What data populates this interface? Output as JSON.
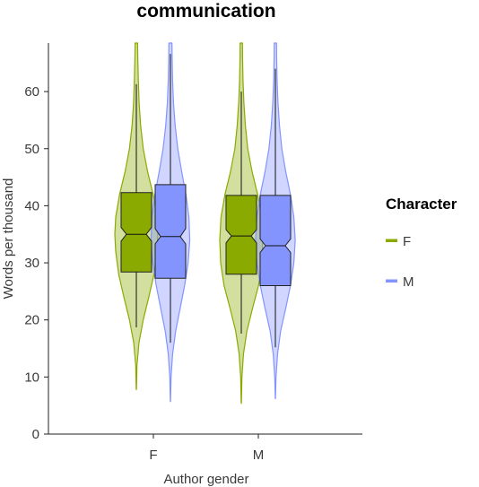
{
  "chart_data": {
    "type": "violin+boxplot",
    "title": "communication",
    "xlabel": "Author gender",
    "ylabel": "Words per thousand",
    "categories": [
      "F",
      "M"
    ],
    "ylim": [
      0,
      68.5
    ],
    "yticks": [
      0,
      10,
      20,
      30,
      40,
      50,
      60
    ],
    "grid": false,
    "legend": {
      "title": "Character",
      "position": "right",
      "entries": [
        {
          "label": "F",
          "color": "#8aaa00"
        },
        {
          "label": "M",
          "color": "#8394ff"
        }
      ]
    },
    "groups": [
      {
        "category": "F",
        "character": "F",
        "color": "#8aaa00",
        "box": {
          "q1": 28.4,
          "median": 35.0,
          "q3": 42.3,
          "notch_low": 33.8,
          "notch_high": 36.2
        },
        "whiskers": [
          18.7,
          61.3
        ],
        "violin": {
          "y": [
            7.8,
            12,
            16,
            20,
            24,
            28,
            32,
            35,
            38,
            42,
            46,
            50,
            54,
            58,
            62,
            66,
            68.5
          ],
          "width": [
            0.005,
            0.03,
            0.12,
            0.32,
            0.58,
            0.82,
            0.96,
            1.0,
            0.96,
            0.78,
            0.52,
            0.32,
            0.2,
            0.13,
            0.09,
            0.065,
            0.06
          ]
        }
      },
      {
        "category": "F",
        "character": "M",
        "color": "#8394ff",
        "box": {
          "q1": 27.3,
          "median": 34.6,
          "q3": 43.7,
          "notch_low": 33.3,
          "notch_high": 36.0
        },
        "whiskers": [
          16.0,
          66.6
        ],
        "violin": {
          "y": [
            5.7,
            10,
            14,
            18,
            22,
            26,
            30,
            34,
            38,
            42,
            46,
            50,
            54,
            58,
            62,
            66,
            68.5
          ],
          "width": [
            0.005,
            0.03,
            0.1,
            0.24,
            0.45,
            0.66,
            0.82,
            0.9,
            0.86,
            0.72,
            0.52,
            0.34,
            0.22,
            0.14,
            0.1,
            0.08,
            0.07
          ]
        }
      },
      {
        "category": "M",
        "character": "F",
        "color": "#8aaa00",
        "box": {
          "q1": 28.0,
          "median": 34.7,
          "q3": 41.8,
          "notch_low": 33.5,
          "notch_high": 35.8
        },
        "whiskers": [
          17.6,
          60.0
        ],
        "violin": {
          "y": [
            5.4,
            10,
            14,
            18,
            22,
            26,
            30,
            34,
            38,
            42,
            46,
            50,
            54,
            58,
            62,
            66,
            68.5
          ],
          "width": [
            0.005,
            0.03,
            0.1,
            0.26,
            0.52,
            0.8,
            0.96,
            1.0,
            0.94,
            0.76,
            0.5,
            0.3,
            0.19,
            0.12,
            0.08,
            0.06,
            0.055
          ]
        }
      },
      {
        "category": "M",
        "character": "M",
        "color": "#8394ff",
        "box": {
          "q1": 26.0,
          "median": 33.0,
          "q3": 41.8,
          "notch_low": 31.8,
          "notch_high": 34.2
        },
        "whiskers": [
          15.2,
          64.0
        ],
        "violin": {
          "y": [
            6.2,
            10,
            14,
            18,
            22,
            26,
            30,
            34,
            38,
            42,
            46,
            50,
            54,
            58,
            62,
            66,
            68.5
          ],
          "width": [
            0.005,
            0.03,
            0.1,
            0.24,
            0.48,
            0.7,
            0.86,
            0.92,
            0.86,
            0.7,
            0.48,
            0.3,
            0.19,
            0.12,
            0.08,
            0.06,
            0.055
          ]
        }
      }
    ]
  }
}
